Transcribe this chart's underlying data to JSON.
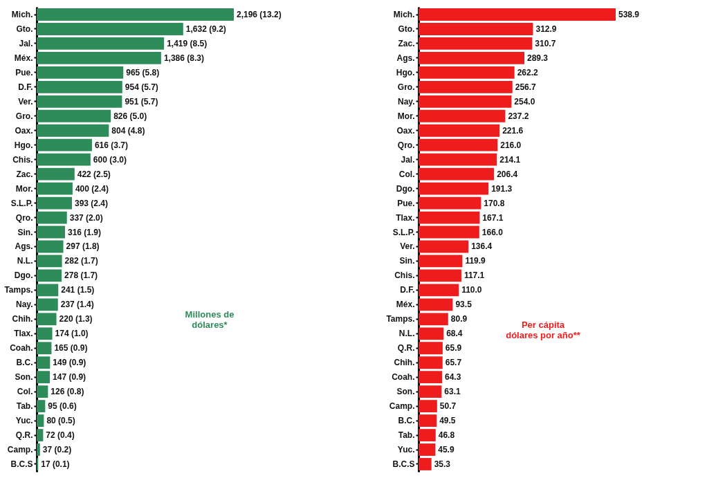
{
  "chart_data": [
    {
      "type": "bar",
      "orientation": "horizontal",
      "tick_labels": "y",
      "color": "#2e8b5a",
      "categories": [
        "Mich.",
        "Gto.",
        "Jal.",
        "Méx.",
        "Pue.",
        "D.F.",
        "Ver.",
        "Gro.",
        "Oax.",
        "Hgo.",
        "Chis.",
        "Zac.",
        "Mor.",
        "S.L.P.",
        "Qro.",
        "Sin.",
        "Ags.",
        "N.L.",
        "Dgo.",
        "Tamps.",
        "Nay.",
        "Chih.",
        "Tlax.",
        "Coah.",
        "B.C.",
        "Son.",
        "Col.",
        "Tab.",
        "Yuc.",
        "Q.R.",
        "Camp.",
        "B.C.S"
      ],
      "values": [
        2196,
        1632,
        1419,
        1386,
        965,
        954,
        951,
        826,
        804,
        616,
        600,
        422,
        400,
        393,
        337,
        316,
        297,
        282,
        278,
        241,
        237,
        220,
        174,
        165,
        149,
        147,
        126,
        95,
        80,
        72,
        37,
        17
      ],
      "value_labels": [
        "2,196 (13.2)",
        "1,632 (9.2)",
        "1,419 (8.5)",
        "1,386 (8.3)",
        "965 (5.8)",
        "954 (5.7)",
        "951 (5.7)",
        "826 (5.0)",
        "804 (4.8)",
        "616 (3.7)",
        "600 (3.0)",
        "422 (2.5)",
        "400 (2.4)",
        "393 (2.4)",
        "337 (2.0)",
        "316 (1.9)",
        "297 (1.8)",
        "282 (1.7)",
        "278 (1.7)",
        "241 (1.5)",
        "237 (1.4)",
        "220 (1.3)",
        "174 (1.0)",
        "165 (0.9)",
        "149 (0.9)",
        "147 (0.9)",
        "126 (0.8)",
        "95 (0.6)",
        "80 (0.5)",
        "72 (0.4)",
        "37 (0.2)",
        "17 (0.1)"
      ],
      "annotations": [
        "Millones de dólares*"
      ]
    },
    {
      "type": "bar",
      "orientation": "horizontal",
      "tick_labels": "y",
      "color": "#ee1c1c",
      "categories": [
        "Mich.",
        "Gto.",
        "Zac.",
        "Ags.",
        "Hgo.",
        "Gro.",
        "Nay.",
        "Mor.",
        "Oax.",
        "Qro.",
        "Jal.",
        "Col.",
        "Dgo.",
        "Pue.",
        "Tlax.",
        "S.L.P.",
        "Ver.",
        "Sin.",
        "Chis.",
        "D.F.",
        "Méx.",
        "Tamps.",
        "N.L.",
        "Q.R.",
        "Chih.",
        "Coah.",
        "Son.",
        "Camp.",
        "B.C.",
        "Tab.",
        "Yuc.",
        "B.C.S"
      ],
      "values": [
        538.9,
        312.9,
        310.7,
        289.3,
        262.2,
        256.7,
        254.0,
        237.2,
        221.6,
        216.0,
        214.1,
        206.4,
        191.3,
        170.8,
        167.1,
        166.0,
        136.4,
        119.9,
        117.1,
        110.0,
        93.5,
        80.9,
        68.4,
        65.9,
        65.7,
        64.3,
        63.1,
        50.7,
        49.5,
        46.8,
        45.9,
        35.3
      ],
      "value_labels": [
        "538.9",
        "312.9",
        "310.7",
        "289.3",
        "262.2",
        "256.7",
        "254.0",
        "237.2",
        "221.6",
        "216.0",
        "214.1",
        "206.4",
        "191.3",
        "170.8",
        "167.1",
        "166.0",
        "136.4",
        "119.9",
        "117.1",
        "110.0",
        "93.5",
        "80.9",
        "68.4",
        "65.9",
        "65.7",
        "64.3",
        "63.1",
        "50.7",
        "49.5",
        "46.8",
        "45.9",
        "35.3"
      ],
      "annotations": [
        "Per cápita dólares por año**"
      ]
    }
  ]
}
